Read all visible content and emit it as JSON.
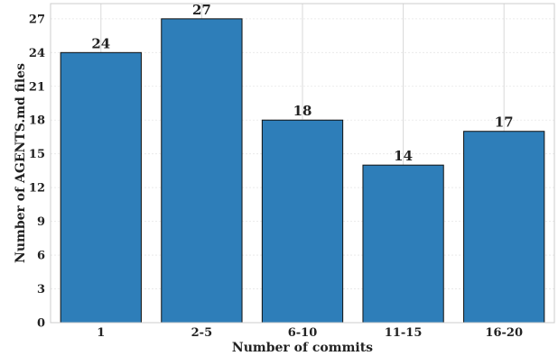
{
  "chart_data": {
    "type": "bar",
    "categories": [
      "1",
      "2-5",
      "6-10",
      "11-15",
      "16-20"
    ],
    "values": [
      24,
      27,
      18,
      14,
      17
    ],
    "title": "",
    "xlabel": "Number of commits",
    "ylabel": "Number of AGENTS.md files",
    "ylim": [
      0,
      28.35
    ],
    "yticks": [
      0,
      3,
      6,
      9,
      12,
      15,
      18,
      21,
      24,
      27
    ],
    "grid": true,
    "bar_color": "#2e7eb9",
    "bar_edge_color": "#111111"
  }
}
